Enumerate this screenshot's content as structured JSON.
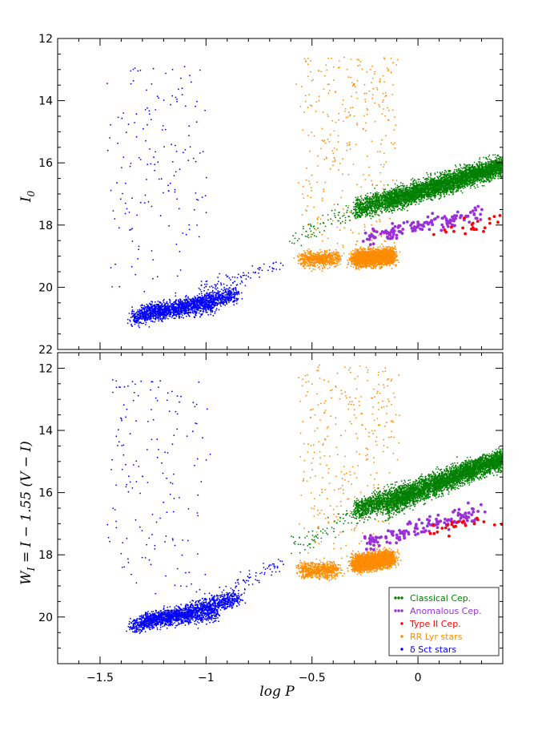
{
  "chart_data": {
    "type": "scatter",
    "xlabel": "log P",
    "xlim": [
      -1.7,
      0.4
    ],
    "x_ticks": [
      -1.5,
      -1,
      -0.5,
      0
    ],
    "x_tick_labels": [
      "−1.5",
      "−1",
      "−0.5",
      "0"
    ],
    "series": [
      {
        "name": "Classical Cep.",
        "color": "#008000"
      },
      {
        "name": "Anomalous Cep.",
        "color": "#9b30d9"
      },
      {
        "name": "Type II Cep.",
        "color": "#ff0000"
      },
      {
        "name": "RR Lyr stars",
        "color": "#ff8c00"
      },
      {
        "name": "δ Sct stars",
        "color": "#0000ff"
      }
    ],
    "panels": [
      {
        "id": "top",
        "ylabel_main": "I",
        "ylabel_sub": "0",
        "ylim": [
          22,
          12
        ],
        "y_ticks": [
          12,
          14,
          16,
          18,
          20,
          22
        ],
        "clouds": [
          {
            "series": "δ Sct stars",
            "n": 1300,
            "x": [
              -1.35,
              -0.85
            ],
            "y": [
              21.0,
              20.2
            ]
          },
          {
            "series": "δ Sct stars",
            "n": 700,
            "x": [
              -1.3,
              -0.95
            ],
            "y": [
              20.8,
              20.6
            ]
          },
          {
            "series": "δ Sct stars",
            "n": 90,
            "x": [
              -1.05,
              -0.65
            ],
            "y": [
              20.1,
              19.3
            ]
          },
          {
            "series": "δ Sct stars",
            "n": 160,
            "x": [
              -1.45,
              -1.0
            ],
            "y": [
              20.3,
              12.9
            ]
          },
          {
            "series": "RR Lyr stars",
            "n": 650,
            "x": [
              -0.55,
              -0.38
            ],
            "y": [
              19.1,
              19.1
            ]
          },
          {
            "series": "RR Lyr stars",
            "n": 2600,
            "x": [
              -0.3,
              -0.12
            ],
            "y": [
              19.1,
              19.0
            ]
          },
          {
            "series": "RR Lyr stars",
            "n": 340,
            "x": [
              -0.55,
              -0.1
            ],
            "y": [
              18.9,
              12.6
            ]
          },
          {
            "series": "Anomalous Cep.",
            "n": 140,
            "x": [
              -0.25,
              0.3
            ],
            "y": [
              18.4,
              17.6
            ]
          },
          {
            "series": "Classical Cep.",
            "n": 3000,
            "x": [
              -0.3,
              0.4
            ],
            "y": [
              17.5,
              16.1
            ]
          },
          {
            "series": "Classical Cep.",
            "n": 1600,
            "x": [
              -0.15,
              0.4
            ],
            "y": [
              17.3,
              16.1
            ]
          },
          {
            "series": "Classical Cep.",
            "n": 70,
            "x": [
              -0.6,
              -0.3
            ],
            "y": [
              18.5,
              17.5
            ]
          },
          {
            "series": "Type II Cep.",
            "n": 22,
            "x": [
              0.05,
              0.4
            ],
            "y": [
              18.3,
              17.8
            ]
          }
        ]
      },
      {
        "id": "bottom",
        "ylabel_main": "W",
        "ylabel_sub": "I",
        "ylabel_rest": " = I − 1.55 (V − I)",
        "ylim": [
          21.5,
          11.5
        ],
        "y_ticks": [
          12,
          14,
          16,
          18,
          20
        ],
        "clouds": [
          {
            "series": "δ Sct stars",
            "n": 1300,
            "x": [
              -1.35,
              -0.85
            ],
            "y": [
              20.3,
              19.4
            ]
          },
          {
            "series": "δ Sct stars",
            "n": 700,
            "x": [
              -1.3,
              -0.95
            ],
            "y": [
              20.1,
              19.9
            ]
          },
          {
            "series": "δ Sct stars",
            "n": 90,
            "x": [
              -1.05,
              -0.65
            ],
            "y": [
              19.6,
              18.3
            ]
          },
          {
            "series": "δ Sct stars",
            "n": 160,
            "x": [
              -1.45,
              -1.0
            ],
            "y": [
              19.5,
              12.3
            ]
          },
          {
            "series": "RR Lyr stars",
            "n": 650,
            "x": [
              -0.55,
              -0.38
            ],
            "y": [
              18.5,
              18.5
            ]
          },
          {
            "series": "RR Lyr stars",
            "n": 2600,
            "x": [
              -0.3,
              -0.12
            ],
            "y": [
              18.3,
              18.1
            ]
          },
          {
            "series": "RR Lyr stars",
            "n": 340,
            "x": [
              -0.55,
              -0.1
            ],
            "y": [
              18.3,
              11.9
            ]
          },
          {
            "series": "Anomalous Cep.",
            "n": 140,
            "x": [
              -0.25,
              0.3
            ],
            "y": [
              17.6,
              16.6
            ]
          },
          {
            "series": "Classical Cep.",
            "n": 3000,
            "x": [
              -0.3,
              0.4
            ],
            "y": [
              16.6,
              14.9
            ]
          },
          {
            "series": "Classical Cep.",
            "n": 1600,
            "x": [
              -0.15,
              0.4
            ],
            "y": [
              16.5,
              14.9
            ]
          },
          {
            "series": "Classical Cep.",
            "n": 70,
            "x": [
              -0.6,
              -0.3
            ],
            "y": [
              17.9,
              16.6
            ]
          },
          {
            "series": "Type II Cep.",
            "n": 22,
            "x": [
              0.05,
              0.4
            ],
            "y": [
              17.3,
              16.8
            ]
          }
        ]
      }
    ],
    "legend": {
      "panel": "bottom",
      "placement": "bottom-right"
    }
  }
}
